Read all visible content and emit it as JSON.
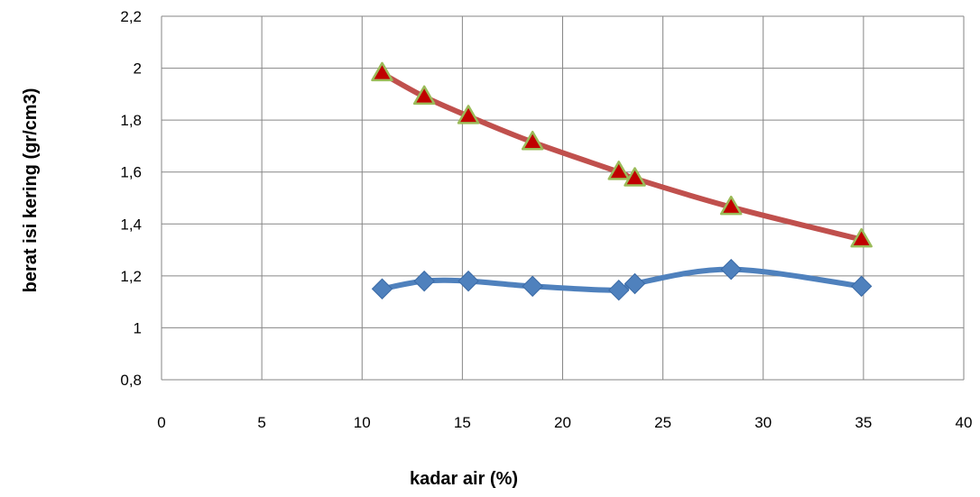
{
  "chart_data": {
    "type": "line",
    "title": "",
    "xlabel": "kadar air (%)",
    "ylabel": "berat isi kering (gr/cm3)",
    "xlim": [
      0,
      40
    ],
    "ylim": [
      0.8,
      2.2
    ],
    "x_ticks": [
      0,
      5,
      10,
      15,
      20,
      25,
      30,
      35,
      40
    ],
    "x_tick_labels": [
      "0",
      "5",
      "10",
      "15",
      "20",
      "25",
      "30",
      "35",
      "40"
    ],
    "y_ticks": [
      0.8,
      1.0,
      1.2,
      1.4,
      1.6,
      1.8,
      2.0,
      2.2
    ],
    "y_tick_labels": [
      "0,8",
      "1",
      "1,2",
      "1,4",
      "1,6",
      "1,8",
      "2",
      "2,2"
    ],
    "grid": true,
    "legend": "none",
    "series": [
      {
        "color": "#4f81bd",
        "marker": "diamond",
        "x": [
          11.0,
          13.1,
          15.3,
          18.5,
          22.8,
          23.6,
          28.4,
          34.9
        ],
        "y": [
          1.15,
          1.18,
          1.18,
          1.16,
          1.145,
          1.17,
          1.225,
          1.16
        ]
      },
      {
        "color": "#c0504d",
        "marker": "triangle",
        "marker_fill": "#c00000",
        "marker_edge": "#9bbb59",
        "x": [
          11.0,
          13.1,
          15.3,
          18.5,
          22.8,
          23.6,
          28.4,
          34.9
        ],
        "y": [
          1.98,
          1.89,
          1.815,
          1.715,
          1.6,
          1.575,
          1.465,
          1.34
        ]
      }
    ]
  }
}
